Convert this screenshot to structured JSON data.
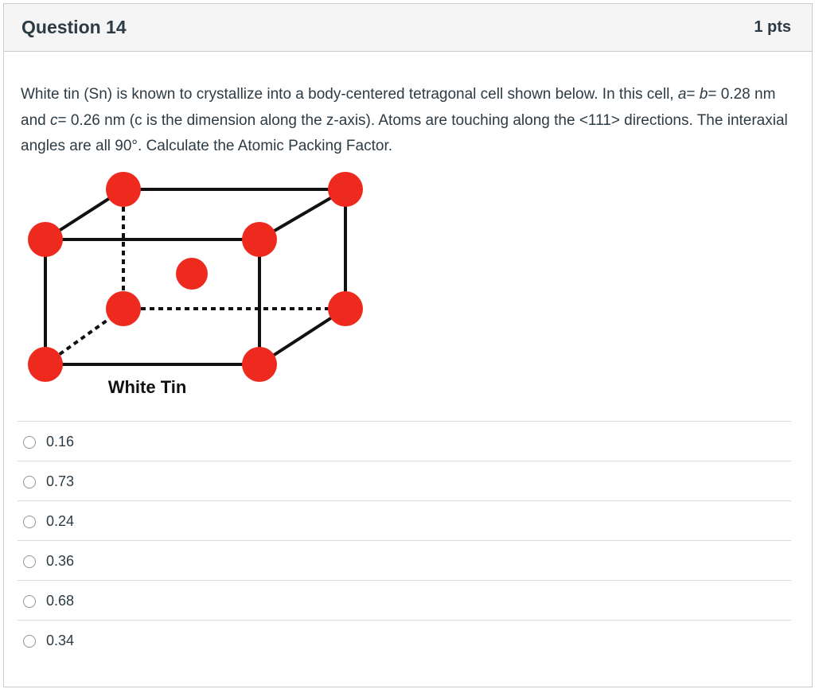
{
  "question": {
    "title": "Question 14",
    "points": "1 pts",
    "text": {
      "part1": "White tin (Sn) is known to crystallize into a body-centered tetragonal cell shown below. In this cell, ",
      "a_symbol": "a",
      "eq1": "= ",
      "b_symbol": "b",
      "eq2": "= 0.28 nm and ",
      "c_symbol": "c",
      "part2": "= 0.26 nm (c is the dimension along the z-axis). Atoms are touching along the <111> directions. The interaxial angles are all 90°. Calculate the Atomic Packing Factor."
    },
    "figure": {
      "caption": "White Tin",
      "atom_color": "#ee2a1f",
      "edge_color": "#111111"
    },
    "answers": [
      {
        "label": "0.16",
        "selected": false
      },
      {
        "label": "0.73",
        "selected": false
      },
      {
        "label": "0.24",
        "selected": false
      },
      {
        "label": "0.36",
        "selected": false
      },
      {
        "label": "0.68",
        "selected": false
      },
      {
        "label": "0.34",
        "selected": false
      }
    ]
  }
}
